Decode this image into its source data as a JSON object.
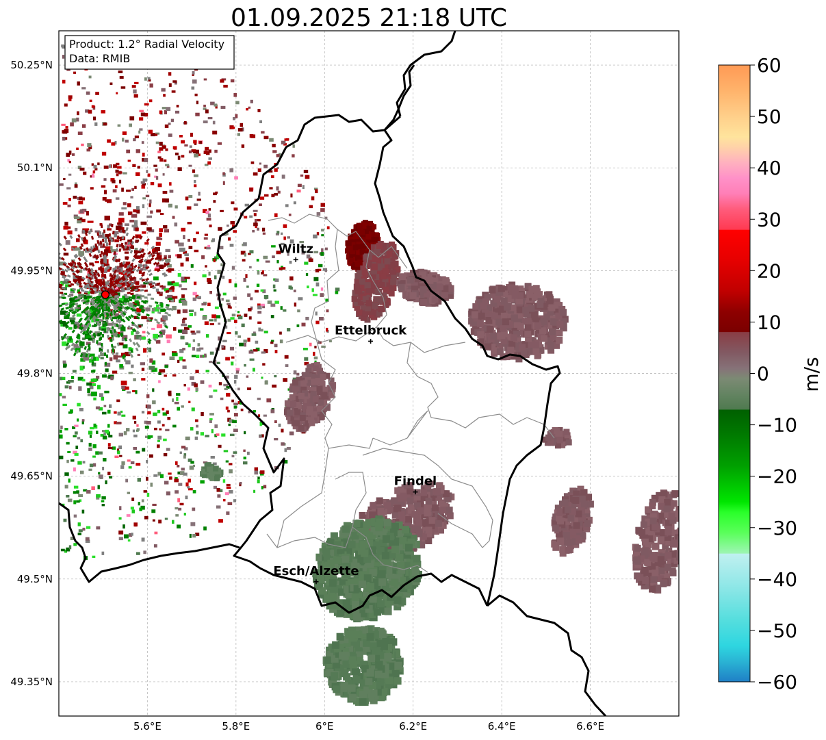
{
  "title": "01.09.2025 21:18 UTC",
  "info_box": {
    "product": "Product: 1.2° Radial Velocity",
    "source": "Data: RMIB"
  },
  "map_extent": {
    "lon_min": 5.4,
    "lon_max": 6.8,
    "lat_min": 49.3,
    "lat_max": 50.3
  },
  "lon_ticks": [
    {
      "value": 5.6,
      "label": "5.6°E"
    },
    {
      "value": 5.8,
      "label": "5.8°E"
    },
    {
      "value": 6.0,
      "label": "6°E"
    },
    {
      "value": 6.2,
      "label": "6.2°E"
    },
    {
      "value": 6.4,
      "label": "6.4°E"
    },
    {
      "value": 6.6,
      "label": "6.6°E"
    }
  ],
  "lat_ticks": [
    {
      "value": 50.25,
      "label": "50.25°N"
    },
    {
      "value": 50.1,
      "label": "50.1°N"
    },
    {
      "value": 49.95,
      "label": "49.95°N"
    },
    {
      "value": 49.8,
      "label": "49.8°N"
    },
    {
      "value": 49.65,
      "label": "49.65°N"
    },
    {
      "value": 49.5,
      "label": "49.5°N"
    },
    {
      "value": 49.35,
      "label": "49.35°N"
    }
  ],
  "radar_site": {
    "lon": 5.505,
    "lat": 49.915,
    "color": "#ff0000"
  },
  "cities": [
    {
      "name": "Wiltz",
      "lon": 5.935,
      "lat": 49.966
    },
    {
      "name": "Ettelbruck",
      "lon": 6.104,
      "lat": 49.847
    },
    {
      "name": "Findel",
      "lon": 6.205,
      "lat": 49.627
    },
    {
      "name": "Esch/Alzette",
      "lon": 5.981,
      "lat": 49.496
    }
  ],
  "colorbar": {
    "label": "m/s",
    "min": -60,
    "max": 60,
    "ticks": [
      {
        "value": 60,
        "label": "60"
      },
      {
        "value": 50,
        "label": "50"
      },
      {
        "value": 40,
        "label": "40"
      },
      {
        "value": 30,
        "label": "30"
      },
      {
        "value": 20,
        "label": "20"
      },
      {
        "value": 10,
        "label": "10"
      },
      {
        "value": 0,
        "label": "0"
      },
      {
        "value": -10,
        "label": "−10"
      },
      {
        "value": -20,
        "label": "−20"
      },
      {
        "value": -30,
        "label": "−30"
      },
      {
        "value": -40,
        "label": "−40"
      },
      {
        "value": -50,
        "label": "−50"
      },
      {
        "value": -60,
        "label": "−60"
      }
    ],
    "stops": [
      {
        "v": 60,
        "c": "#ff9a55"
      },
      {
        "v": 55,
        "c": "#ffb36b"
      },
      {
        "v": 50,
        "c": "#ffcf8a"
      },
      {
        "v": 46,
        "c": "#ffe49d"
      },
      {
        "v": 44,
        "c": "#ffd2a8"
      },
      {
        "v": 41,
        "c": "#ffb1bf"
      },
      {
        "v": 38,
        "c": "#ff91c8"
      },
      {
        "v": 35,
        "c": "#ff7fb7"
      },
      {
        "v": 32,
        "c": "#ff5c7c"
      },
      {
        "v": 28,
        "c": "#ff3a52"
      },
      {
        "v": 27.9,
        "c": "#ff0000"
      },
      {
        "v": 22,
        "c": "#e60000"
      },
      {
        "v": 16,
        "c": "#c00000"
      },
      {
        "v": 12,
        "c": "#8e0000"
      },
      {
        "v": 8.1,
        "c": "#7a0000"
      },
      {
        "v": 8,
        "c": "#8a3d45"
      },
      {
        "v": 4,
        "c": "#825a63"
      },
      {
        "v": 1,
        "c": "#867278"
      },
      {
        "v": -1,
        "c": "#7c8a74"
      },
      {
        "v": -4,
        "c": "#648462"
      },
      {
        "v": -7,
        "c": "#4f7a4f"
      },
      {
        "v": -7.1,
        "c": "#006000"
      },
      {
        "v": -12,
        "c": "#007a00"
      },
      {
        "v": -18,
        "c": "#00a000"
      },
      {
        "v": -25,
        "c": "#00e600"
      },
      {
        "v": -27,
        "c": "#2aff2a"
      },
      {
        "v": -31,
        "c": "#5aff5a"
      },
      {
        "v": -35,
        "c": "#9ef5b4"
      },
      {
        "v": -35.1,
        "c": "#c0f0f0"
      },
      {
        "v": -42,
        "c": "#8ae6e6"
      },
      {
        "v": -48,
        "c": "#55dede"
      },
      {
        "v": -53,
        "c": "#2ed6e0"
      },
      {
        "v": -56,
        "c": "#2ab4d4"
      },
      {
        "v": -60,
        "c": "#1f7fc6"
      }
    ]
  },
  "map_colors": {
    "inbound_clutter": "#008000",
    "outbound_clutter": "#8b0000",
    "gray_clutter": "#7f7f7f",
    "storm_brown": "#845a63",
    "storm_dark_red": "#7a0000",
    "storm_green": "#557a55",
    "border": "#000000",
    "canton": "#8c8c8c"
  }
}
